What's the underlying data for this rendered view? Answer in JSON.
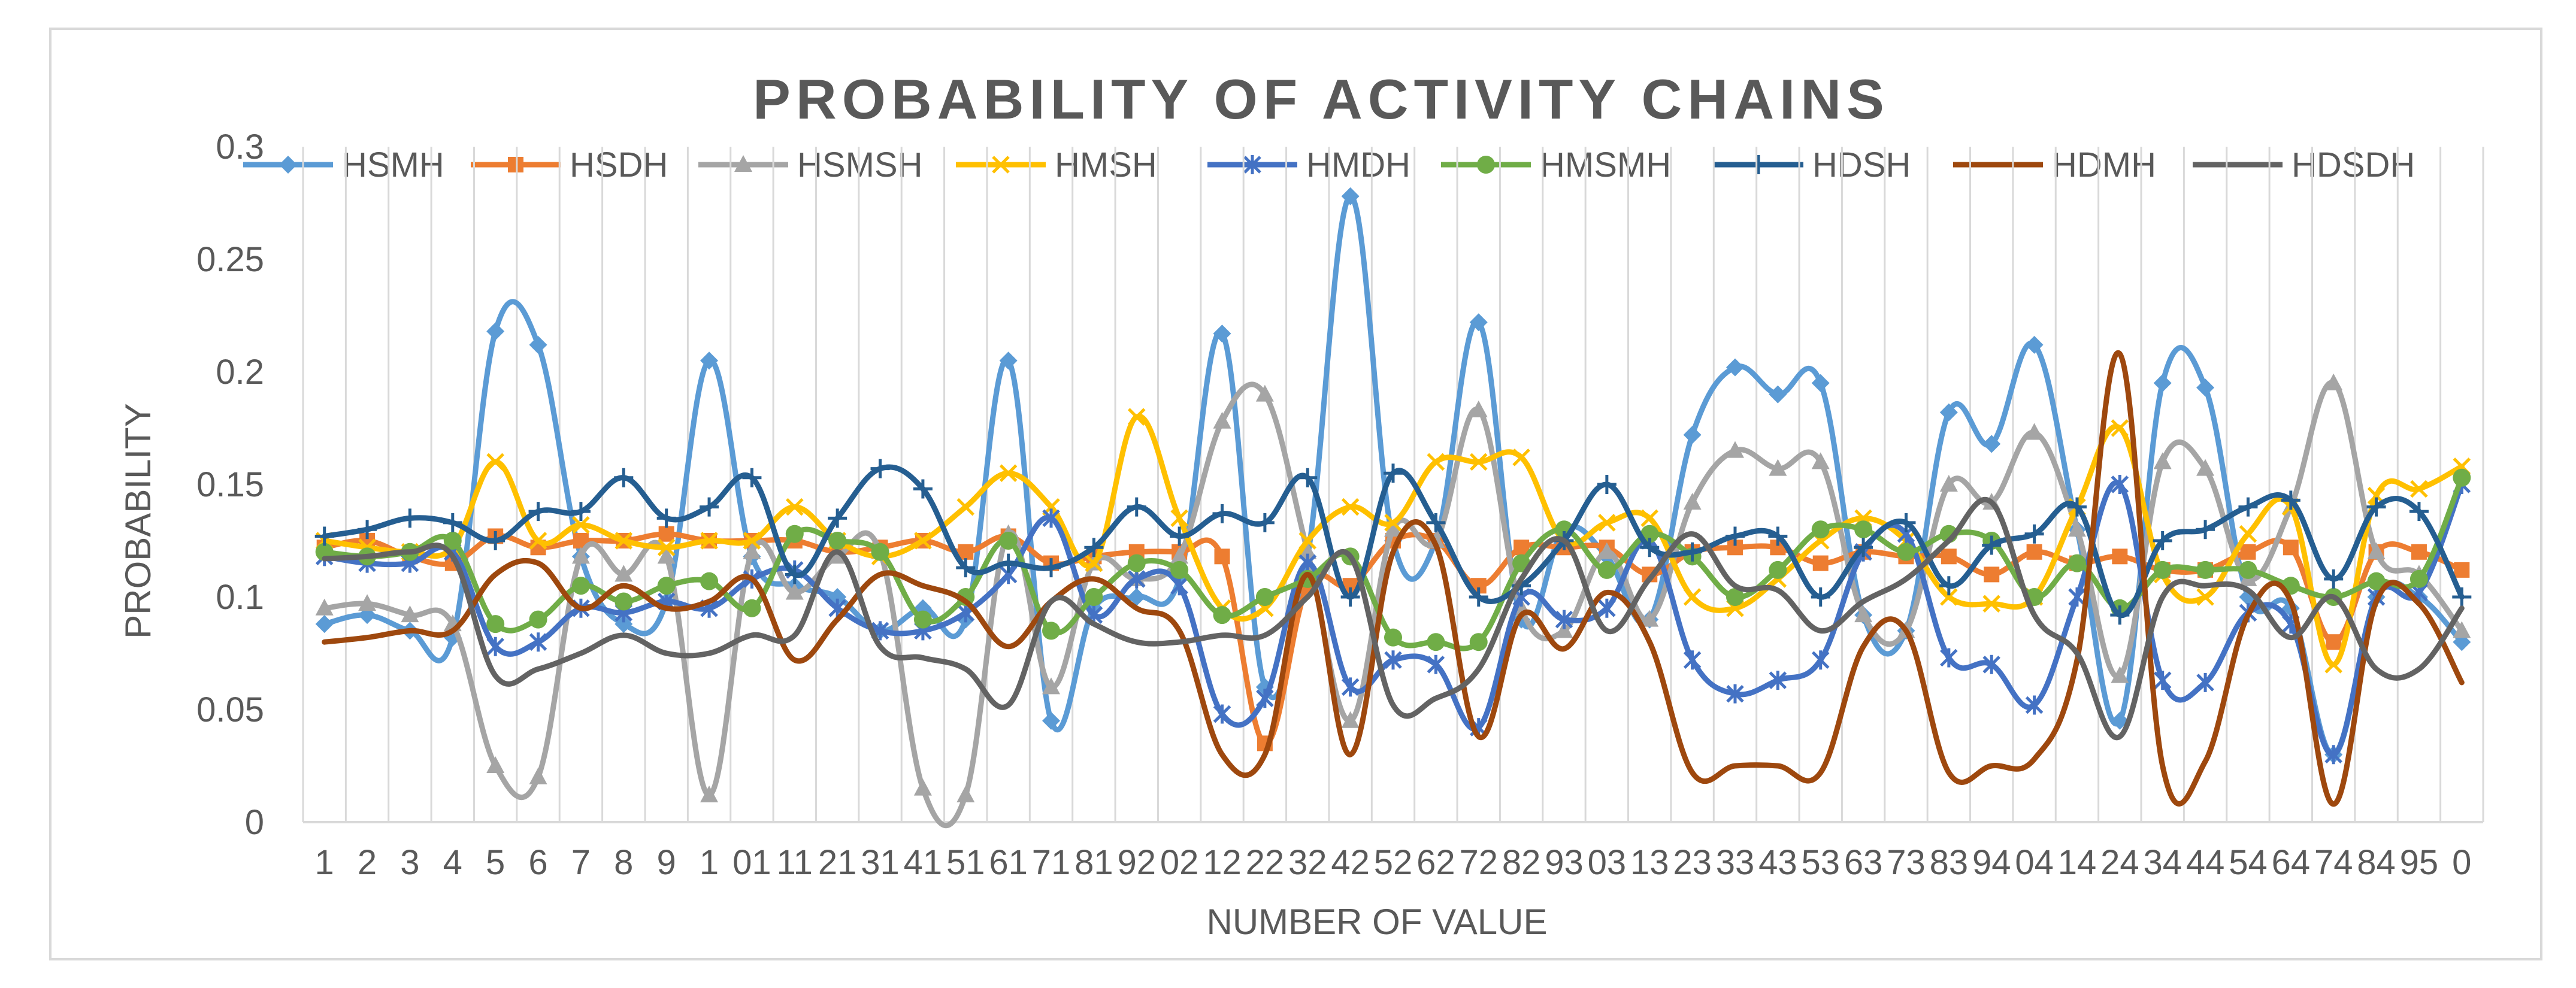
{
  "chart_data": {
    "type": "line",
    "title": "PROBABILITY OF ACTIVITY CHAINS",
    "xlabel": "NUMBER OF VALUE",
    "ylabel": "PROBABILITY",
    "ylim": [
      0,
      0.3
    ],
    "yticks": [
      "0",
      "0.05",
      "0.1",
      "0.15",
      "0.2",
      "0.25",
      "0.3"
    ],
    "grid": "vertical",
    "legend_position": "top",
    "categories": [
      "1",
      "2",
      "3",
      "4",
      "5",
      "6",
      "7",
      "8",
      "9",
      "1",
      "01",
      "11",
      "21",
      "31",
      "41",
      "51",
      "61",
      "71",
      "81",
      "92",
      "02",
      "12",
      "22",
      "32",
      "42",
      "52",
      "62",
      "72",
      "82",
      "93",
      "03",
      "13",
      "23",
      "33",
      "43",
      "53",
      "63",
      "73",
      "83",
      "94",
      "04",
      "14",
      "24",
      "34",
      "44",
      "54",
      "64",
      "74",
      "84",
      "95",
      "0"
    ],
    "series": [
      {
        "name": "HSMH",
        "color": "#5B9BD5",
        "marker": "diamond",
        "values": [
          0.088,
          0.092,
          0.085,
          0.082,
          0.218,
          0.212,
          0.118,
          0.088,
          0.098,
          0.205,
          0.118,
          0.105,
          0.1,
          0.085,
          0.095,
          0.09,
          0.205,
          0.045,
          0.095,
          0.1,
          0.108,
          0.217,
          0.06,
          0.118,
          0.278,
          0.125,
          0.125,
          0.222,
          0.09,
          0.13,
          0.118,
          0.09,
          0.172,
          0.202,
          0.19,
          0.195,
          0.092,
          0.085,
          0.182,
          0.168,
          0.212,
          0.13,
          0.045,
          0.195,
          0.193,
          0.1,
          0.095,
          0.03,
          0.1,
          0.1,
          0.08
        ]
      },
      {
        "name": "HSDH",
        "color": "#ED7D31",
        "marker": "square",
        "values": [
          0.122,
          0.125,
          0.118,
          0.115,
          0.127,
          0.122,
          0.125,
          0.125,
          0.128,
          0.125,
          0.125,
          0.125,
          0.12,
          0.122,
          0.125,
          0.12,
          0.127,
          0.115,
          0.118,
          0.12,
          0.12,
          0.118,
          0.035,
          0.105,
          0.105,
          0.125,
          0.125,
          0.105,
          0.122,
          0.122,
          0.122,
          0.11,
          0.12,
          0.122,
          0.122,
          0.115,
          0.12,
          0.118,
          0.118,
          0.11,
          0.12,
          0.115,
          0.118,
          0.112,
          0.112,
          0.12,
          0.122,
          0.08,
          0.12,
          0.12,
          0.112
        ]
      },
      {
        "name": "HSMSH",
        "color": "#A5A5A5",
        "marker": "triangle",
        "values": [
          0.095,
          0.097,
          0.092,
          0.088,
          0.025,
          0.02,
          0.118,
          0.11,
          0.118,
          0.012,
          0.12,
          0.102,
          0.118,
          0.12,
          0.015,
          0.012,
          0.128,
          0.06,
          0.115,
          0.108,
          0.118,
          0.178,
          0.19,
          0.12,
          0.045,
          0.13,
          0.125,
          0.183,
          0.095,
          0.085,
          0.12,
          0.09,
          0.142,
          0.165,
          0.157,
          0.16,
          0.092,
          0.085,
          0.15,
          0.142,
          0.173,
          0.13,
          0.065,
          0.16,
          0.157,
          0.108,
          0.14,
          0.195,
          0.12,
          0.11,
          0.085
        ]
      },
      {
        "name": "HMSH",
        "color": "#FFC000",
        "marker": "x",
        "values": [
          0.125,
          0.122,
          0.12,
          0.122,
          0.16,
          0.125,
          0.132,
          0.125,
          0.122,
          0.125,
          0.125,
          0.14,
          0.125,
          0.118,
          0.125,
          0.14,
          0.155,
          0.14,
          0.115,
          0.18,
          0.135,
          0.095,
          0.095,
          0.125,
          0.14,
          0.133,
          0.16,
          0.16,
          0.162,
          0.125,
          0.133,
          0.135,
          0.1,
          0.095,
          0.108,
          0.125,
          0.135,
          0.125,
          0.1,
          0.097,
          0.1,
          0.14,
          0.175,
          0.11,
          0.1,
          0.128,
          0.14,
          0.07,
          0.145,
          0.148,
          0.158
        ]
      },
      {
        "name": "HMDH",
        "color": "#4472C4",
        "marker": "star",
        "values": [
          0.118,
          0.115,
          0.115,
          0.12,
          0.078,
          0.08,
          0.095,
          0.093,
          0.098,
          0.095,
          0.108,
          0.112,
          0.095,
          0.085,
          0.085,
          0.093,
          0.11,
          0.135,
          0.092,
          0.108,
          0.105,
          0.048,
          0.055,
          0.115,
          0.06,
          0.072,
          0.07,
          0.042,
          0.1,
          0.09,
          0.095,
          0.125,
          0.072,
          0.057,
          0.063,
          0.072,
          0.12,
          0.128,
          0.073,
          0.07,
          0.052,
          0.1,
          0.15,
          0.063,
          0.062,
          0.093,
          0.088,
          0.03,
          0.1,
          0.102,
          0.15
        ]
      },
      {
        "name": "HMSMH",
        "color": "#70AD47",
        "marker": "circle",
        "values": [
          0.12,
          0.118,
          0.12,
          0.125,
          0.088,
          0.09,
          0.105,
          0.098,
          0.105,
          0.107,
          0.095,
          0.128,
          0.125,
          0.12,
          0.09,
          0.1,
          0.125,
          0.085,
          0.1,
          0.115,
          0.112,
          0.092,
          0.1,
          0.108,
          0.118,
          0.082,
          0.08,
          0.08,
          0.115,
          0.13,
          0.112,
          0.128,
          0.118,
          0.1,
          0.112,
          0.13,
          0.13,
          0.12,
          0.128,
          0.125,
          0.1,
          0.115,
          0.095,
          0.112,
          0.112,
          0.112,
          0.105,
          0.1,
          0.107,
          0.108,
          0.153
        ]
      },
      {
        "name": "HDSH",
        "color": "#255E91",
        "marker": "plus",
        "values": [
          0.127,
          0.13,
          0.135,
          0.133,
          0.125,
          0.138,
          0.138,
          0.153,
          0.135,
          0.14,
          0.153,
          0.11,
          0.135,
          0.157,
          0.148,
          0.113,
          0.115,
          0.113,
          0.122,
          0.14,
          0.127,
          0.137,
          0.133,
          0.153,
          0.1,
          0.155,
          0.133,
          0.1,
          0.105,
          0.125,
          0.15,
          0.122,
          0.12,
          0.127,
          0.127,
          0.1,
          0.122,
          0.133,
          0.105,
          0.123,
          0.128,
          0.14,
          0.092,
          0.125,
          0.13,
          0.14,
          0.143,
          0.108,
          0.14,
          0.138,
          0.1
        ]
      },
      {
        "name": "HDMH",
        "color": "#9E480E",
        "marker": "none",
        "values": [
          0.08,
          0.082,
          0.085,
          0.085,
          0.11,
          0.115,
          0.095,
          0.105,
          0.095,
          0.098,
          0.108,
          0.072,
          0.09,
          0.11,
          0.105,
          0.098,
          0.078,
          0.098,
          0.108,
          0.095,
          0.085,
          0.03,
          0.03,
          0.11,
          0.03,
          0.12,
          0.123,
          0.038,
          0.092,
          0.077,
          0.102,
          0.08,
          0.022,
          0.025,
          0.025,
          0.022,
          0.078,
          0.085,
          0.022,
          0.025,
          0.028,
          0.072,
          0.208,
          0.025,
          0.027,
          0.092,
          0.098,
          0.008,
          0.098,
          0.097,
          0.062
        ]
      },
      {
        "name": "HDSDH",
        "color": "#636363",
        "marker": "none",
        "values": [
          0.117,
          0.118,
          0.12,
          0.118,
          0.065,
          0.068,
          0.075,
          0.083,
          0.075,
          0.075,
          0.083,
          0.083,
          0.12,
          0.078,
          0.073,
          0.068,
          0.052,
          0.098,
          0.088,
          0.08,
          0.08,
          0.083,
          0.083,
          0.1,
          0.118,
          0.052,
          0.055,
          0.068,
          0.108,
          0.125,
          0.085,
          0.108,
          0.128,
          0.105,
          0.103,
          0.085,
          0.098,
          0.108,
          0.125,
          0.142,
          0.092,
          0.075,
          0.038,
          0.1,
          0.105,
          0.103,
          0.082,
          0.1,
          0.068,
          0.068,
          0.095
        ]
      }
    ]
  }
}
